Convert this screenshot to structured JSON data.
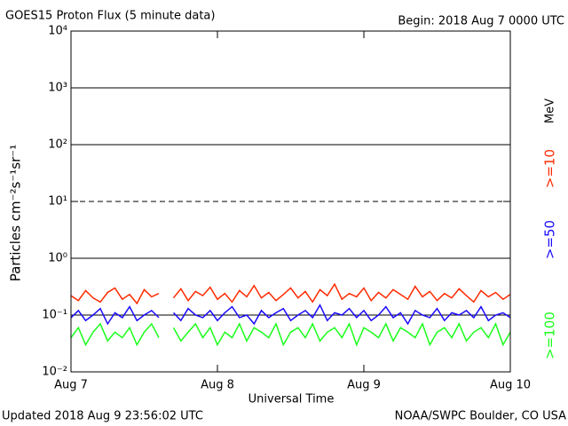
{
  "chart_data": {
    "type": "line",
    "title": "GOES15 Proton Flux (5 minute data)",
    "subtitle": "Begin: 2018 Aug 7 0000 UTC",
    "y_label": "Particles cm⁻²s⁻¹sr⁻¹",
    "x_label": "Universal Time",
    "footer_left": "Updated 2018 Aug  9 23:56:02 UTC",
    "footer_right": "NOAA/SWPC Boulder, CO USA",
    "legend_unit": "MeV",
    "log_y": true,
    "grid": true,
    "dashed_grid_values": [
      10
    ],
    "xlim": [
      0,
      3
    ],
    "xticks": [
      {
        "value": 0,
        "label": "Aug 7"
      },
      {
        "value": 1,
        "label": "Aug 8"
      },
      {
        "value": 2,
        "label": "Aug 9"
      },
      {
        "value": 3,
        "label": "Aug 10"
      }
    ],
    "ylim": [
      0.01,
      10000
    ],
    "yticks": [
      {
        "value": 0.01,
        "label": "10⁻²"
      },
      {
        "value": 0.1,
        "label": "10⁻¹"
      },
      {
        "value": 1,
        "label": "10⁰"
      },
      {
        "value": 10,
        "label": "10¹"
      },
      {
        "value": 100,
        "label": "10²"
      },
      {
        "value": 1000,
        "label": "10³"
      },
      {
        "value": 10000,
        "label": "10⁴"
      }
    ],
    "x": [
      0,
      0.05,
      0.1,
      0.15,
      0.2,
      0.25,
      0.3,
      0.35,
      0.4,
      0.45,
      0.5,
      0.55,
      0.6,
      0.65,
      0.7,
      0.75,
      0.8,
      0.85,
      0.9,
      0.95,
      1,
      1.05,
      1.1,
      1.15,
      1.2,
      1.25,
      1.3,
      1.35,
      1.4,
      1.45,
      1.5,
      1.55,
      1.6,
      1.65,
      1.7,
      1.75,
      1.8,
      1.85,
      1.9,
      1.95,
      2,
      2.05,
      2.1,
      2.15,
      2.2,
      2.25,
      2.3,
      2.35,
      2.4,
      2.45,
      2.5,
      2.55,
      2.6,
      2.65,
      2.7,
      2.75,
      2.8,
      2.85,
      2.9,
      2.95,
      3
    ],
    "series": [
      {
        "name": ">=10",
        "color": "#ff2a00",
        "values": [
          0.22,
          0.18,
          0.27,
          0.2,
          0.17,
          0.25,
          0.3,
          0.19,
          0.23,
          0.16,
          0.28,
          0.21,
          0.24,
          null,
          0.2,
          0.29,
          0.18,
          0.26,
          0.22,
          0.31,
          0.19,
          0.24,
          0.17,
          0.27,
          0.21,
          0.33,
          0.2,
          0.25,
          0.18,
          0.23,
          0.3,
          0.2,
          0.26,
          0.17,
          0.28,
          0.22,
          0.35,
          0.19,
          0.24,
          0.21,
          0.3,
          0.18,
          0.25,
          0.2,
          0.28,
          0.23,
          0.19,
          0.32,
          0.21,
          0.26,
          0.18,
          0.24,
          0.2,
          0.29,
          0.22,
          0.17,
          0.27,
          0.21,
          0.25,
          0.19,
          0.23
        ]
      },
      {
        "name": ">=50",
        "color": "#1a0aff",
        "values": [
          0.09,
          0.12,
          0.08,
          0.1,
          0.13,
          0.07,
          0.11,
          0.09,
          0.14,
          0.08,
          0.1,
          0.12,
          0.09,
          null,
          0.11,
          0.08,
          0.13,
          0.1,
          0.09,
          0.12,
          0.08,
          0.11,
          0.14,
          0.09,
          0.1,
          0.07,
          0.12,
          0.09,
          0.11,
          0.13,
          0.08,
          0.1,
          0.12,
          0.09,
          0.15,
          0.08,
          0.11,
          0.1,
          0.13,
          0.09,
          0.12,
          0.08,
          0.1,
          0.14,
          0.09,
          0.11,
          0.07,
          0.12,
          0.1,
          0.09,
          0.13,
          0.08,
          0.11,
          0.1,
          0.12,
          0.09,
          0.14,
          0.08,
          0.1,
          0.11,
          0.09
        ]
      },
      {
        "name": ">=100",
        "color": "#1aff1a",
        "values": [
          0.04,
          0.06,
          0.03,
          0.05,
          0.07,
          0.035,
          0.05,
          0.04,
          0.06,
          0.03,
          0.05,
          0.07,
          0.04,
          null,
          0.06,
          0.035,
          0.05,
          0.07,
          0.04,
          0.06,
          0.03,
          0.05,
          0.04,
          0.07,
          0.035,
          0.06,
          0.05,
          0.04,
          0.07,
          0.03,
          0.05,
          0.06,
          0.04,
          0.07,
          0.035,
          0.05,
          0.06,
          0.04,
          0.07,
          0.03,
          0.06,
          0.05,
          0.04,
          0.07,
          0.035,
          0.06,
          0.05,
          0.04,
          0.07,
          0.03,
          0.05,
          0.06,
          0.04,
          0.07,
          0.035,
          0.05,
          0.06,
          0.04,
          0.07,
          0.03,
          0.05
        ]
      }
    ]
  }
}
